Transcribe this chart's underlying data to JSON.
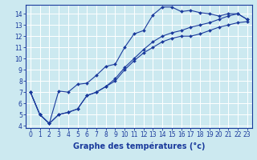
{
  "background_color": "#cce9f0",
  "plot_bg_color": "#cce9f0",
  "grid_color": "#ffffff",
  "line_color": "#1a3a9c",
  "marker_color": "#1a3a9c",
  "xlabel": "Graphe des températures (°c)",
  "xlabel_fontsize": 7,
  "xlabel_color": "#1a3a9c",
  "tick_color": "#1a3a9c",
  "tick_fontsize": 5.5,
  "xlim": [
    -0.5,
    23.5
  ],
  "ylim": [
    3.8,
    14.8
  ],
  "yticks": [
    4,
    5,
    6,
    7,
    8,
    9,
    10,
    11,
    12,
    13,
    14
  ],
  "xticks": [
    0,
    1,
    2,
    3,
    4,
    5,
    6,
    7,
    8,
    9,
    10,
    11,
    12,
    13,
    14,
    15,
    16,
    17,
    18,
    19,
    20,
    21,
    22,
    23
  ],
  "series1_x": [
    0,
    1,
    2,
    3,
    4,
    5,
    6,
    7,
    8,
    9,
    10,
    11,
    12,
    13,
    14,
    15,
    16,
    17,
    18,
    19,
    20,
    21,
    22,
    23
  ],
  "series1_y": [
    7.0,
    5.0,
    4.2,
    7.1,
    7.0,
    7.7,
    7.8,
    8.5,
    9.3,
    9.5,
    11.0,
    12.2,
    12.5,
    13.9,
    14.6,
    14.6,
    14.2,
    14.3,
    14.1,
    14.0,
    13.8,
    14.0,
    14.0,
    13.5
  ],
  "series2_x": [
    0,
    1,
    2,
    3,
    4,
    5,
    6,
    7,
    8,
    9,
    10,
    11,
    12,
    13,
    14,
    15,
    16,
    17,
    18,
    19,
    20,
    21,
    22,
    23
  ],
  "series2_y": [
    7.0,
    5.0,
    4.2,
    5.0,
    5.2,
    5.5,
    6.7,
    7.0,
    7.5,
    8.0,
    9.0,
    9.8,
    10.5,
    11.0,
    11.5,
    11.8,
    12.0,
    12.0,
    12.2,
    12.5,
    12.8,
    13.0,
    13.2,
    13.3
  ],
  "series3_x": [
    0,
    1,
    2,
    3,
    4,
    5,
    6,
    7,
    8,
    9,
    10,
    11,
    12,
    13,
    14,
    15,
    16,
    17,
    18,
    19,
    20,
    21,
    22,
    23
  ],
  "series3_y": [
    7.0,
    5.0,
    4.2,
    5.0,
    5.2,
    5.5,
    6.7,
    7.0,
    7.5,
    8.2,
    9.2,
    10.0,
    10.8,
    11.5,
    12.0,
    12.3,
    12.5,
    12.8,
    13.0,
    13.2,
    13.5,
    13.8,
    14.0,
    13.5
  ]
}
